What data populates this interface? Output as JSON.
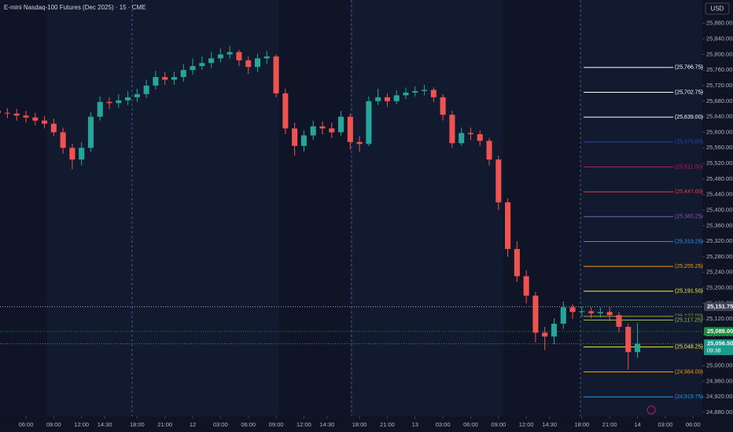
{
  "chart_data": {
    "type": "candlestick",
    "title": "E-mini Nasdaq-100 Futures (Dec 2025) · 15 · CME",
    "currency": "USD",
    "up_color": "#26a69a",
    "down_color": "#ef5350",
    "open": [
      25655,
      25650,
      25648,
      25643,
      25638,
      25630,
      25622,
      25600,
      25560,
      25530,
      25560,
      25640,
      25678,
      25675,
      25682,
      25690,
      25698,
      25720,
      25742,
      25735,
      25742,
      25760,
      25770,
      25778,
      25790,
      25800,
      25806,
      25785,
      25768,
      25790,
      25795,
      25700,
      25610,
      25565,
      25592,
      25615,
      25610,
      25600,
      25640,
      25575,
      25570,
      25680,
      25690,
      25680,
      25695,
      25702,
      25706,
      25709,
      25690,
      25645,
      25572,
      25598,
      25595,
      25578,
      25530,
      25420,
      25300,
      25230,
      25180,
      25085,
      25075,
      25108,
      25150,
      25138,
      25140,
      25135,
      25138,
      25130,
      25100,
      25035
    ],
    "high": [
      25670,
      25662,
      25660,
      25655,
      25650,
      25642,
      25635,
      25612,
      25570,
      25575,
      25652,
      25692,
      25690,
      25698,
      25705,
      25712,
      25735,
      25758,
      25755,
      25756,
      25775,
      25790,
      25795,
      25806,
      25815,
      25822,
      25812,
      25795,
      25802,
      25808,
      25800,
      25712,
      25625,
      25605,
      25630,
      25628,
      25625,
      25655,
      25648,
      25590,
      25692,
      25712,
      25700,
      25708,
      25715,
      25718,
      25722,
      25715,
      25698,
      25655,
      25612,
      25612,
      25605,
      25585,
      25540,
      25430,
      25320,
      25245,
      25190,
      25100,
      25122,
      25165,
      25158,
      25152,
      25150,
      25150,
      25150,
      25138,
      25108,
      25110
    ],
    "low": [
      25635,
      25636,
      25630,
      25625,
      25618,
      25610,
      25590,
      25545,
      25505,
      25515,
      25550,
      25630,
      25660,
      25662,
      25670,
      25678,
      25688,
      25710,
      25722,
      25722,
      25730,
      25748,
      25760,
      25765,
      25780,
      25788,
      25770,
      25750,
      25755,
      25775,
      25690,
      25595,
      25540,
      25550,
      25580,
      25595,
      25585,
      25590,
      25555,
      25550,
      25565,
      25670,
      25665,
      25672,
      25685,
      25692,
      25695,
      25678,
      25630,
      25560,
      25565,
      25580,
      25565,
      25515,
      25400,
      25280,
      25215,
      25160,
      25060,
      25040,
      25055,
      25095,
      25120,
      25125,
      25122,
      25124,
      25115,
      25085,
      24990,
      25020
    ],
    "close": [
      25650,
      25648,
      25643,
      25638,
      25630,
      25622,
      25600,
      25560,
      25530,
      25560,
      25640,
      25678,
      25675,
      25682,
      25690,
      25698,
      25720,
      25742,
      25735,
      25742,
      25760,
      25770,
      25778,
      25790,
      25800,
      25806,
      25785,
      25768,
      25790,
      25795,
      25700,
      25610,
      25565,
      25592,
      25615,
      25610,
      25600,
      25640,
      25575,
      25570,
      25680,
      25690,
      25680,
      25695,
      25702,
      25706,
      25709,
      25690,
      25645,
      25572,
      25598,
      25595,
      25578,
      25530,
      25420,
      25300,
      25230,
      25180,
      25085,
      25075,
      25108,
      25150,
      25138,
      25140,
      25135,
      25138,
      25130,
      25100,
      25035,
      25056.5
    ],
    "xlim": [
      0.2,
      76
    ],
    "xticks": [
      {
        "value": 3,
        "label": "06:00"
      },
      {
        "value": 6,
        "label": "09:00"
      },
      {
        "value": 9,
        "label": "12:00"
      },
      {
        "value": 11.5,
        "label": "14:30"
      },
      {
        "value": 15,
        "label": "18:00"
      },
      {
        "value": 18,
        "label": "21:00"
      },
      {
        "value": 21,
        "label": "12"
      },
      {
        "value": 24,
        "label": "03:00"
      },
      {
        "value": 27,
        "label": "06:00"
      },
      {
        "value": 30,
        "label": "09:00"
      },
      {
        "value": 33,
        "label": "12:00"
      },
      {
        "value": 35.5,
        "label": "14:30"
      },
      {
        "value": 39,
        "label": "18:00"
      },
      {
        "value": 42,
        "label": "21:00"
      },
      {
        "value": 45,
        "label": "13"
      },
      {
        "value": 48,
        "label": "03:00"
      },
      {
        "value": 51,
        "label": "06:00"
      },
      {
        "value": 54,
        "label": "09:00"
      },
      {
        "value": 57,
        "label": "12:00"
      },
      {
        "value": 59.5,
        "label": "14:30"
      },
      {
        "value": 63,
        "label": "18:00"
      },
      {
        "value": 66,
        "label": "21:00"
      },
      {
        "value": 69,
        "label": "14"
      },
      {
        "value": 72,
        "label": "03:00"
      },
      {
        "value": 75,
        "label": "06:00"
      }
    ],
    "ylim": [
      24870,
      25940
    ],
    "yticks": [
      {
        "value": 25880,
        "label": "25,880.00"
      },
      {
        "value": 25840,
        "label": "25,840.00"
      },
      {
        "value": 25800,
        "label": "25,800.00"
      },
      {
        "value": 25760,
        "label": "25,760.00"
      },
      {
        "value": 25720,
        "label": "25,720.00"
      },
      {
        "value": 25680,
        "label": "25,680.00"
      },
      {
        "value": 25640,
        "label": "25,640.00"
      },
      {
        "value": 25600,
        "label": "25,600.00"
      },
      {
        "value": 25560,
        "label": "25,560.00"
      },
      {
        "value": 25520,
        "label": "25,520.00"
      },
      {
        "value": 25480,
        "label": "25,480.00"
      },
      {
        "value": 25440,
        "label": "25,440.00"
      },
      {
        "value": 25400,
        "label": "25,400.00"
      },
      {
        "value": 25360,
        "label": "25,360.00"
      },
      {
        "value": 25320,
        "label": "25,320.00"
      },
      {
        "value": 25280,
        "label": "25,280.00"
      },
      {
        "value": 25240,
        "label": "25,240.00"
      },
      {
        "value": 25200,
        "label": "25,200.00"
      },
      {
        "value": 25160,
        "label": "25,160.00"
      },
      {
        "value": 25120,
        "label": "25,120.00"
      },
      {
        "value": 25080,
        "label": "25,080.00"
      },
      {
        "value": 25040,
        "label": "25,040.00"
      },
      {
        "value": 25000,
        "label": "25,000.00"
      },
      {
        "value": 24960,
        "label": "24,960.00"
      },
      {
        "value": 24920,
        "label": "24,920.00"
      },
      {
        "value": 24880,
        "label": "24,880.00"
      }
    ],
    "levels": [
      {
        "value": 25766.75,
        "label": "(25,766.75)",
        "color": "#ffffff"
      },
      {
        "value": 25702.75,
        "label": "(25,702.75)",
        "color": "#ffffff"
      },
      {
        "value": 25639.0,
        "label": "(25,639.00)",
        "color": "#ffffff"
      },
      {
        "value": 25575.0,
        "label": "(25,575.00)",
        "color": "#2f3fb0"
      },
      {
        "value": 25511.0,
        "label": "(25,511.00)",
        "color": "#c2185b"
      },
      {
        "value": 25447.0,
        "label": "(25,447.00)",
        "color": "#e53935"
      },
      {
        "value": 25383.25,
        "label": "(25,383.25)",
        "color": "#7e57c2"
      },
      {
        "value": 25319.25,
        "label": "(25,319.25)",
        "color": "#2196f3"
      },
      {
        "value": 25255.25,
        "label": "(25,255.25)",
        "color": "#ff9800"
      },
      {
        "value": 25191.5,
        "label": "(25,191.50)",
        "color": "#ffeb3b"
      },
      {
        "value": 25127.0,
        "label": "(25,127.00)",
        "color": "#9e9d24"
      },
      {
        "value": 25117.25,
        "label": "(25,117.25)",
        "color": "#8bc34a"
      },
      {
        "value": 25048.25,
        "label": "(25,048.25)",
        "color": "#ffeb3b"
      },
      {
        "value": 24984.0,
        "label": "(24,984.00)",
        "color": "#ff9800"
      },
      {
        "value": 24919.75,
        "label": "(24,919.75)",
        "color": "#2196f3"
      }
    ],
    "price_tags": [
      {
        "value": 25151.75,
        "label": "25,151.75",
        "color": "#3b4256"
      },
      {
        "value": 25088.0,
        "label": "25,088.00",
        "color": "#1b8f3e"
      },
      {
        "value": 25056.5,
        "label": "25,056.50",
        "color": "#1c9a8e",
        "countdown": "09:38"
      }
    ]
  }
}
